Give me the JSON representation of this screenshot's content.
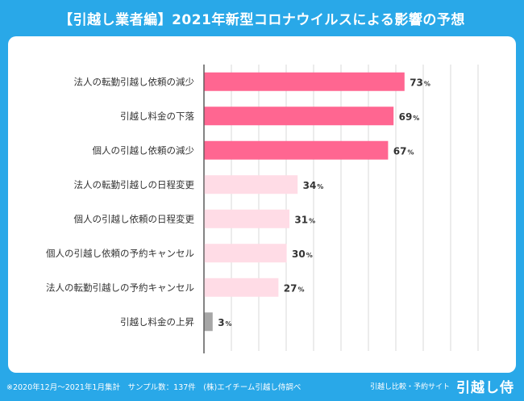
{
  "title": "【引越し業者編】2021年新型コロナウイルスによる影響の予想",
  "footer": {
    "note": "※2020年12月～2021年1月集計　サンプル数：137件　(株)エイチーム引越し侍調べ",
    "brand_tagline": "引越し比較・予約サイト",
    "brand_name": "引越し侍"
  },
  "colors": {
    "background": "#29a8e8",
    "high": "#ff6691",
    "mid": "#ffdce6",
    "low": "#a6a6a6",
    "grid": "#d9d9d9"
  },
  "chart_data": {
    "type": "bar",
    "orientation": "horizontal",
    "title": "【引越し業者編】2021年新型コロナウイルスによる影響の予想",
    "xlabel": "",
    "ylabel": "",
    "unit": "%",
    "xlim": [
      0,
      100
    ],
    "grid": true,
    "categories": [
      "法人の転勤引越し依頼の減少",
      "引越し料金の下落",
      "個人の引越し依頼の減少",
      "法人の転勤引越しの日程変更",
      "個人の引越し依頼の日程変更",
      "個人の引越し依頼の予約キャンセル",
      "法人の転勤引越しの予約キャンセル",
      "引越し料金の上昇"
    ],
    "values": [
      73,
      69,
      67,
      34,
      31,
      30,
      27,
      3
    ],
    "bar_colors": [
      "high",
      "high",
      "high",
      "mid",
      "mid",
      "mid",
      "mid",
      "low"
    ]
  }
}
